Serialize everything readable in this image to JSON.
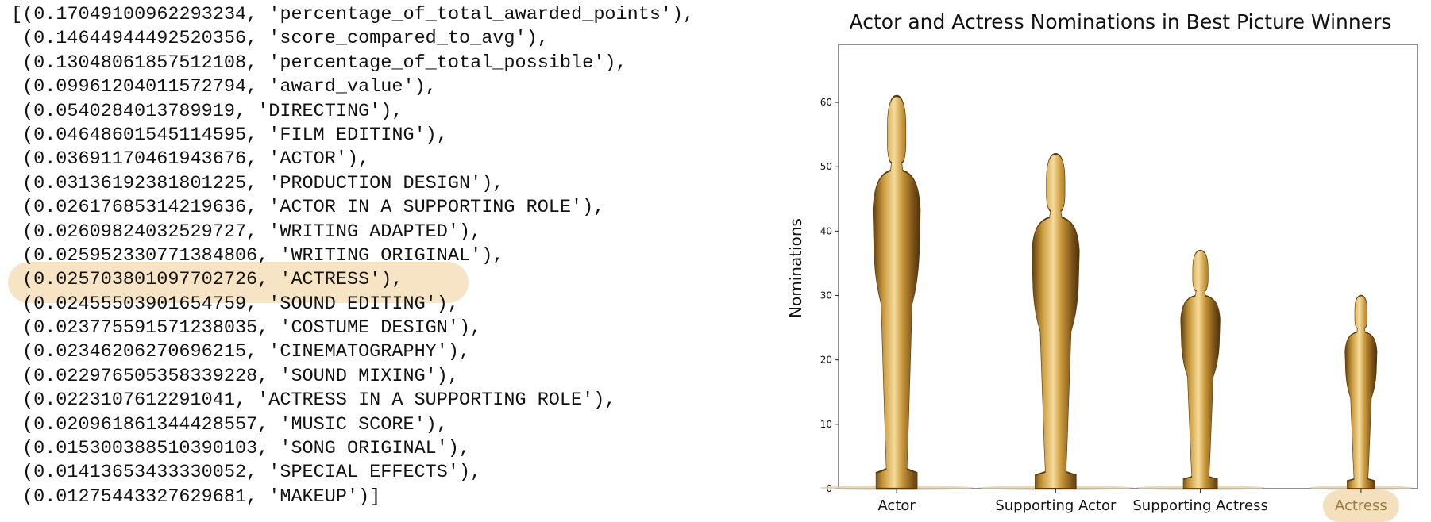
{
  "code_output": {
    "lines": [
      "[(0.17049100962293234, 'percentage_of_total_awarded_points'),",
      "(0.14644944492520356, 'score_compared_to_avg'),",
      "(0.13048061857512108, 'percentage_of_total_possible'),",
      "(0.09961204011572794, 'award_value'),",
      "(0.0540284013789919, 'DIRECTING'),",
      "(0.04648601545114595, 'FILM EDITING'),",
      "(0.03691170461943676, 'ACTOR'),",
      "(0.03136192381801225, 'PRODUCTION DESIGN'),",
      "(0.02617685314219636, 'ACTOR IN A SUPPORTING ROLE'),",
      "(0.02609824032529727, 'WRITING ADAPTED'),",
      "(0.025952330771384806, 'WRITING ORIGINAL'),",
      "(0.025703801097702726, 'ACTRESS'),",
      "(0.02455503901654759, 'SOUND EDITING'),",
      "(0.023775591571238035, 'COSTUME DESIGN'),",
      "(0.02346206270696215, 'CINEMATOGRAPHY'),",
      "(0.022976505358339228, 'SOUND MIXING'),",
      "(0.0223107612291041, 'ACTRESS IN A SUPPORTING ROLE'),",
      "(0.020961861344428557, 'MUSIC SCORE'),",
      "(0.015300388510390103, 'SONG ORIGINAL'),",
      "(0.01413653433330052, 'SPECIAL EFFECTS'),",
      "(0.01275443327629681, 'MAKEUP')]"
    ],
    "highlighted_line_index": 11,
    "highlight_color": "#f3dbb1"
  },
  "chart_data": {
    "type": "bar",
    "title": "Actor and Actress Nominations in Best Picture Winners",
    "xlabel": "",
    "ylabel": "Nominations",
    "categories": [
      "Actor",
      "Supporting Actor",
      "Supporting Actress",
      "Actress"
    ],
    "values": [
      61,
      52,
      37,
      30
    ],
    "ylim": [
      0,
      69
    ],
    "yticks": [
      0,
      10,
      20,
      30,
      40,
      50,
      60
    ],
    "grid": false,
    "bar_style": "golden statuette",
    "colors": {
      "gold_light": "#f2d08a",
      "gold_mid": "#c99a3c",
      "gold_dark": "#6e4a14",
      "highlight": "#f3dbb1"
    },
    "highlighted_category": "Actress"
  }
}
